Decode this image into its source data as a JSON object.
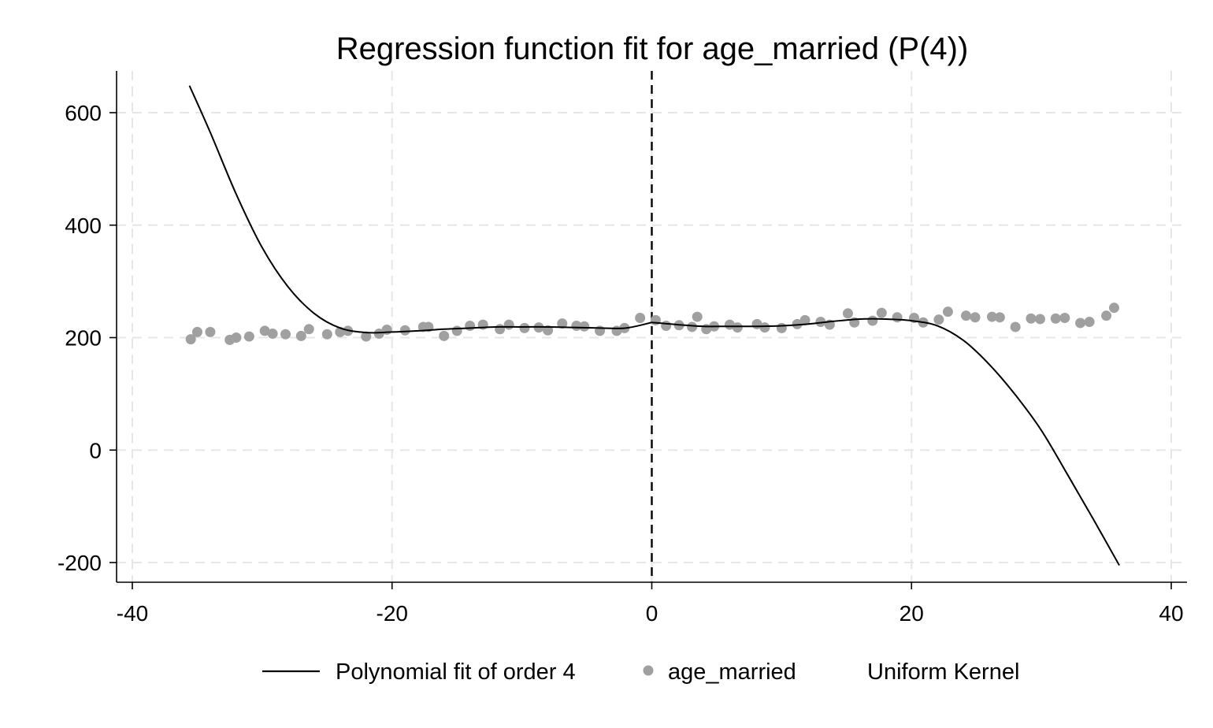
{
  "chart_data": {
    "type": "scatter",
    "title": "Regression function fit for age_married (P(4))",
    "xlabel": "",
    "ylabel": "",
    "xlim": [
      -40,
      40
    ],
    "ylim": [
      -200,
      600
    ],
    "x_ticks": [
      "-40",
      "-20",
      "0",
      "20",
      "40"
    ],
    "y_ticks": [
      "-200",
      "0",
      "200",
      "400",
      "600"
    ],
    "x_tick_values": [
      -40,
      -20,
      0,
      20,
      40
    ],
    "y_tick_values": [
      -200,
      0,
      200,
      400,
      600
    ],
    "grid": true,
    "cutoff": 0,
    "legend_position": "bottom",
    "colors": {
      "scatter": "#a0a0a0",
      "fit": "#000000",
      "grid": "#e6e6e6"
    },
    "series": [
      {
        "name": "age_married",
        "type": "scatter",
        "points": [
          [
            -35.5,
            197
          ],
          [
            -35,
            210
          ],
          [
            -34,
            210
          ],
          [
            -32.5,
            196
          ],
          [
            -32,
            200
          ],
          [
            -31,
            202
          ],
          [
            -29.8,
            212
          ],
          [
            -29.2,
            207
          ],
          [
            -28.2,
            206
          ],
          [
            -27,
            203
          ],
          [
            -26.4,
            215
          ],
          [
            -25,
            206
          ],
          [
            -24,
            210
          ],
          [
            -23.4,
            212
          ],
          [
            -22,
            202
          ],
          [
            -21,
            207
          ],
          [
            -20.4,
            214
          ],
          [
            -19,
            213
          ],
          [
            -17.6,
            219
          ],
          [
            -17.2,
            219
          ],
          [
            -16,
            203
          ],
          [
            -15,
            212
          ],
          [
            -14,
            221
          ],
          [
            -13,
            223
          ],
          [
            -11.7,
            215
          ],
          [
            -11,
            223
          ],
          [
            -9.8,
            217
          ],
          [
            -8.7,
            218
          ],
          [
            -8,
            213
          ],
          [
            -6.9,
            225
          ],
          [
            -5.8,
            221
          ],
          [
            -5.2,
            220
          ],
          [
            -4,
            212
          ],
          [
            -2.7,
            212
          ],
          [
            -2.1,
            217
          ],
          [
            -0.9,
            235
          ],
          [
            0.3,
            231
          ],
          [
            1.1,
            221
          ],
          [
            2.1,
            222
          ],
          [
            3.1,
            219
          ],
          [
            3.5,
            237
          ],
          [
            4.2,
            215
          ],
          [
            4.8,
            220
          ],
          [
            6,
            223
          ],
          [
            6.6,
            218
          ],
          [
            8.1,
            224
          ],
          [
            8.7,
            218
          ],
          [
            10,
            217
          ],
          [
            11.2,
            224
          ],
          [
            11.8,
            231
          ],
          [
            13,
            228
          ],
          [
            13.7,
            223
          ],
          [
            15.1,
            243
          ],
          [
            15.6,
            227
          ],
          [
            17,
            230
          ],
          [
            17.7,
            244
          ],
          [
            18.9,
            236
          ],
          [
            20.2,
            235
          ],
          [
            20.9,
            227
          ],
          [
            22.1,
            232
          ],
          [
            22.8,
            246
          ],
          [
            24.2,
            239
          ],
          [
            24.9,
            236
          ],
          [
            26.2,
            237
          ],
          [
            26.8,
            236
          ],
          [
            28,
            219
          ],
          [
            29.2,
            234
          ],
          [
            29.9,
            233
          ],
          [
            31.1,
            234
          ],
          [
            31.8,
            235
          ],
          [
            33,
            226
          ],
          [
            33.7,
            228
          ],
          [
            35,
            239
          ],
          [
            35.6,
            253
          ]
        ]
      },
      {
        "name": "Polynomial fit of order 4",
        "type": "line",
        "segments": [
          {
            "x": [
              -35.6,
              -34,
              -32,
              -30,
              -28,
              -26,
              -24,
              -22,
              -20,
              -18,
              -16,
              -14,
              -12,
              -10,
              -8,
              -6,
              -4,
              -2,
              0
            ],
            "y": [
              648,
              565,
              455,
              360,
              290,
              243,
              217,
              209,
              210,
              212,
              215,
              217,
              219,
              219,
              219,
              218,
              217,
              217,
              227
            ]
          },
          {
            "x": [
              0,
              2,
              4,
              6,
              8,
              10,
              12,
              14,
              16,
              18,
              20,
              22,
              24,
              26,
              28,
              30,
              32,
              34,
              36
            ],
            "y": [
              227,
              223,
              220,
              220,
              220,
              221,
              224,
              229,
              233,
              233,
              230,
              221,
              195,
              152,
              98,
              35,
              -43,
              -123,
              -205
            ]
          }
        ]
      }
    ]
  },
  "legend": {
    "fit_label": "Polynomial fit of order 4",
    "scatter_label": "age_married",
    "kernel_label": "Uniform Kernel"
  }
}
